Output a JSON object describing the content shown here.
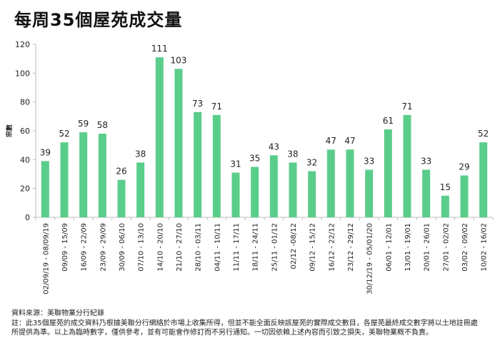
{
  "chart_data": {
    "type": "bar",
    "title": "每周35個屋苑成交量",
    "ylabel": "宗數",
    "xlabel": "",
    "ylim": [
      0,
      120
    ],
    "yticks": [
      0,
      20,
      40,
      60,
      80,
      100,
      120
    ],
    "grid": false,
    "color": "#5acd8a",
    "categories": [
      "02/09/19 - 08/09/19",
      "09/09 - 15/09",
      "16/09 - 22/09",
      "23/09 - 29/09",
      "30/09 - 06/10",
      "07/10 - 13/10",
      "14/10 - 20/10",
      "21/10 - 27/10",
      "28/10 - 03/11",
      "04/11 - 10/11",
      "11/11 - 17/11",
      "18/11 - 24/11",
      "25/11 - 01/12",
      "02/12 -08/12",
      "09/12 - 15/12",
      "16/12 - 22/12",
      "23/12 - 29/12",
      "30/12/19 - 05/01/20",
      "06/01 - 12/01",
      "13/01 - 19/01",
      "20/01 - 26/01",
      "27/01 - 02/02",
      "03/02 - 09/02",
      "10/02 - 16/02"
    ],
    "values": [
      39,
      52,
      59,
      58,
      26,
      38,
      111,
      103,
      73,
      71,
      31,
      35,
      43,
      38,
      32,
      47,
      47,
      33,
      61,
      71,
      33,
      15,
      29,
      52
    ]
  },
  "footer": {
    "source": "資料來源：美聯物業分行紀錄",
    "note1": "註：此35個屋苑的成交資料乃根據美聯分行網絡於市場上收集所得，但並不能全面反映該屋苑的實際成交數目，各屋苑最終成交數字將以土地註冊處",
    "note2": "所提供為準。以上為臨時數字，僅供參考，並有可能會作修訂而不另行通知。一切因依賴上述內容而引致之損失，美聯物業概不負責。"
  }
}
